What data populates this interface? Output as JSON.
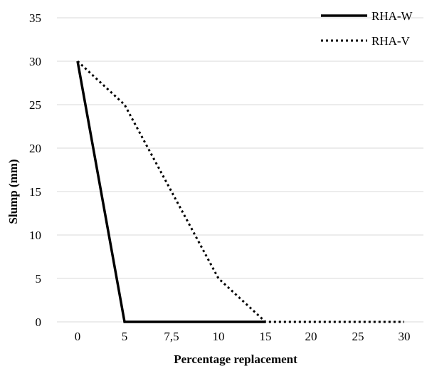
{
  "chart_data": {
    "type": "line",
    "title": "",
    "xlabel": "Percentage replacement",
    "ylabel": "Slump (mm)",
    "categories": [
      "0",
      "5",
      "7,5",
      "10",
      "15",
      "20",
      "25",
      "30"
    ],
    "ylim": [
      0,
      35
    ],
    "yticks": [
      "0",
      "5",
      "10",
      "15",
      "20",
      "25",
      "30",
      "35"
    ],
    "grid": "horizontal",
    "legend_position": "top-right",
    "series": [
      {
        "name": "RHA-W",
        "style": "solid",
        "color": "#000000",
        "values": [
          30,
          0,
          0,
          0,
          0,
          null,
          null,
          null
        ]
      },
      {
        "name": "RHA-V",
        "style": "dotted",
        "color": "#000000",
        "values": [
          30,
          25,
          15,
          5,
          0,
          0,
          0,
          0
        ]
      }
    ]
  }
}
